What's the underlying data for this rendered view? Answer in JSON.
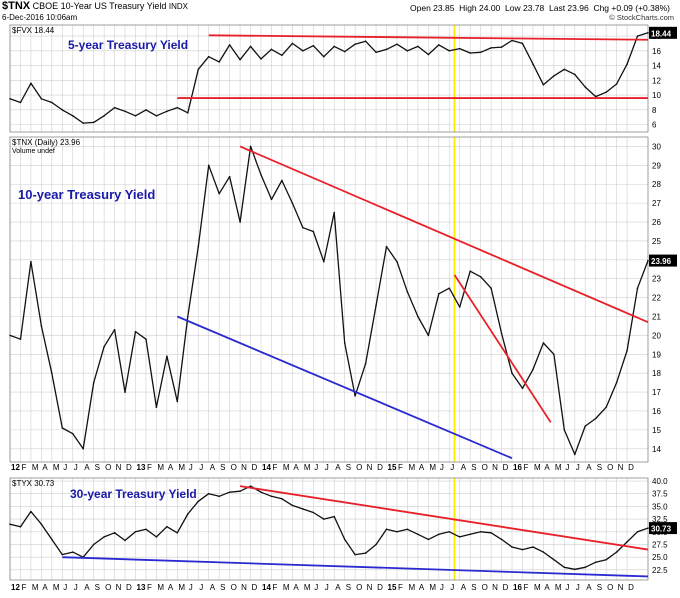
{
  "header": {
    "symbol": "$TNX",
    "name": "CBOE 10-Year US Treasury Yield",
    "exchange": "INDX",
    "date": "6-Dec-2016 10:06am",
    "open": "Open 23.85",
    "high": "High 24.00",
    "low": "Low 23.78",
    "last": "Last 23.96",
    "change": "Chg +0.09 (+0.38%)",
    "credit": "© StockCharts.com"
  },
  "chart_data": [
    {
      "type": "line",
      "legend": "$FVX 18.44",
      "annotation": "5-year Treasury Yield",
      "last_value_label": "18.44",
      "ylim": [
        5,
        19.5
      ],
      "y_ticks": [
        6,
        8,
        10,
        12,
        14,
        16,
        18
      ],
      "x": [
        0,
        1,
        2,
        3,
        4,
        5,
        6,
        7,
        8,
        9,
        10,
        11,
        12,
        13,
        14,
        15,
        16,
        17,
        18,
        19,
        20,
        21,
        22,
        23,
        24,
        25,
        26,
        27,
        28,
        29,
        30,
        31,
        32,
        33,
        34,
        35,
        36,
        37,
        38,
        39,
        40,
        41,
        42,
        43,
        44,
        45,
        46,
        47,
        48,
        49,
        50,
        51,
        52,
        53,
        54,
        55,
        56,
        57,
        58,
        59,
        60,
        61
      ],
      "values": [
        9.5,
        9.0,
        11.6,
        9.5,
        9.0,
        8.0,
        7.2,
        6.2,
        6.3,
        7.2,
        8.3,
        7.8,
        7.2,
        8.0,
        7.2,
        7.8,
        8.3,
        7.6,
        13.5,
        15.2,
        14.5,
        16.8,
        14.8,
        16.6,
        14.9,
        16.2,
        15.4,
        17.0,
        16.0,
        16.7,
        15.2,
        16.6,
        15.9,
        16.9,
        17.3,
        15.8,
        16.2,
        16.9,
        16.0,
        16.6,
        15.5,
        16.8,
        16.0,
        16.3,
        15.7,
        15.8,
        16.4,
        16.5,
        17.4,
        17.0,
        14.2,
        11.4,
        12.6,
        13.5,
        12.8,
        11.1,
        9.8,
        10.4,
        11.5,
        14.2,
        18.0,
        18.44
      ],
      "lines": [
        {
          "color": "#e8202a",
          "x": [
            19,
            61
          ],
          "y": [
            18.1,
            17.5
          ]
        },
        {
          "color": "#e8202a",
          "x": [
            16,
            61
          ],
          "y": [
            9.6,
            9.6
          ]
        }
      ]
    },
    {
      "type": "line",
      "legend": "$TNX (Daily) 23.96",
      "sublegend": "Volume undef",
      "annotation": "10-year Treasury Yield",
      "last_value_label": "23.96",
      "ylim": [
        13.3,
        30.5
      ],
      "y_ticks": [
        14,
        15,
        16,
        17,
        18,
        19,
        20,
        21,
        22,
        23,
        24,
        25,
        26,
        27,
        28,
        29,
        30
      ],
      "x": [
        0,
        1,
        2,
        3,
        4,
        5,
        6,
        7,
        8,
        9,
        10,
        11,
        12,
        13,
        14,
        15,
        16,
        17,
        18,
        19,
        20,
        21,
        22,
        23,
        24,
        25,
        26,
        27,
        28,
        29,
        30,
        31,
        32,
        33,
        34,
        35,
        36,
        37,
        38,
        39,
        40,
        41,
        42,
        43,
        44,
        45,
        46,
        47,
        48,
        49,
        50,
        51,
        52,
        53,
        54,
        55,
        56,
        57,
        58,
        59,
        60,
        61
      ],
      "values": [
        20.0,
        19.8,
        23.9,
        20.5,
        18.0,
        15.1,
        14.8,
        14.0,
        17.5,
        19.4,
        20.3,
        17.0,
        20.2,
        19.8,
        16.2,
        18.9,
        16.5,
        21.0,
        24.7,
        29.0,
        27.5,
        28.4,
        26.0,
        30.0,
        28.5,
        27.2,
        28.2,
        27.0,
        25.7,
        25.5,
        23.9,
        26.5,
        19.6,
        16.8,
        18.5,
        21.6,
        24.7,
        23.9,
        22.3,
        21.0,
        20.0,
        22.2,
        22.5,
        21.5,
        23.4,
        23.1,
        22.5,
        20.1,
        18.0,
        17.2,
        18.2,
        19.6,
        19.0,
        15.0,
        13.7,
        15.2,
        15.6,
        16.2,
        17.5,
        19.2,
        22.5,
        23.96
      ],
      "lines": [
        {
          "color": "#e8202a",
          "x": [
            22,
            61
          ],
          "y": [
            30.0,
            20.7
          ]
        },
        {
          "color": "#e8202a",
          "x": [
            42.5,
            51.7
          ],
          "y": [
            23.2,
            15.4
          ]
        },
        {
          "color": "#2a2ad0",
          "x": [
            16,
            48
          ],
          "y": [
            21.0,
            13.5
          ]
        }
      ]
    },
    {
      "type": "line",
      "legend": "$TYX 30.73",
      "annotation": "30-year Treasury Yield",
      "last_value_label": "30.73",
      "ylim": [
        20.5,
        40.6
      ],
      "y_ticks": [
        22.5,
        25.0,
        27.5,
        30.0,
        32.5,
        35.0,
        37.5,
        40.0
      ],
      "x": [
        0,
        1,
        2,
        3,
        4,
        5,
        6,
        7,
        8,
        9,
        10,
        11,
        12,
        13,
        14,
        15,
        16,
        17,
        18,
        19,
        20,
        21,
        22,
        23,
        24,
        25,
        26,
        27,
        28,
        29,
        30,
        31,
        32,
        33,
        34,
        35,
        36,
        37,
        38,
        39,
        40,
        41,
        42,
        43,
        44,
        45,
        46,
        47,
        48,
        49,
        50,
        51,
        52,
        53,
        54,
        55,
        56,
        57,
        58,
        59,
        60,
        61
      ],
      "values": [
        31.5,
        31.0,
        34.0,
        31.5,
        28.5,
        25.5,
        26.0,
        25.0,
        27.5,
        29.0,
        29.8,
        28.3,
        30.0,
        30.5,
        29.0,
        31.0,
        29.8,
        33.5,
        36.0,
        37.5,
        37.0,
        37.8,
        38.0,
        39.0,
        37.8,
        37.0,
        36.5,
        35.2,
        34.5,
        33.8,
        32.5,
        33.0,
        28.5,
        25.5,
        25.8,
        27.5,
        30.5,
        30.0,
        30.5,
        29.5,
        28.5,
        29.5,
        30.0,
        29.0,
        29.5,
        30.0,
        29.8,
        28.5,
        27.0,
        26.5,
        27.0,
        26.0,
        24.5,
        23.0,
        22.6,
        23.0,
        24.0,
        24.5,
        26.0,
        28.0,
        30.0,
        30.73
      ],
      "lines": [
        {
          "color": "#e8202a",
          "x": [
            22,
            61
          ],
          "y": [
            39.0,
            26.5
          ]
        },
        {
          "color": "#2a2ad0",
          "x": [
            5,
            61
          ],
          "y": [
            25.0,
            21.2
          ]
        }
      ]
    }
  ],
  "x_axis": {
    "month_ticks": [
      {
        "x": 0,
        "label": "12"
      },
      {
        "x": 1,
        "label": "F"
      },
      {
        "x": 2,
        "label": "M"
      },
      {
        "x": 3,
        "label": "A"
      },
      {
        "x": 4,
        "label": "M"
      },
      {
        "x": 5,
        "label": "J"
      },
      {
        "x": 6,
        "label": "J"
      },
      {
        "x": 7,
        "label": "A"
      },
      {
        "x": 8,
        "label": "S"
      },
      {
        "x": 9,
        "label": "O"
      },
      {
        "x": 10,
        "label": "N"
      },
      {
        "x": 11,
        "label": "D"
      },
      {
        "x": 12,
        "label": "13"
      },
      {
        "x": 13,
        "label": "F"
      },
      {
        "x": 14,
        "label": "M"
      },
      {
        "x": 15,
        "label": "A"
      },
      {
        "x": 16,
        "label": "M"
      },
      {
        "x": 17,
        "label": "J"
      },
      {
        "x": 18,
        "label": "J"
      },
      {
        "x": 19,
        "label": "A"
      },
      {
        "x": 20,
        "label": "S"
      },
      {
        "x": 21,
        "label": "O"
      },
      {
        "x": 22,
        "label": "N"
      },
      {
        "x": 23,
        "label": "D"
      },
      {
        "x": 24,
        "label": "14"
      },
      {
        "x": 25,
        "label": "F"
      },
      {
        "x": 26,
        "label": "M"
      },
      {
        "x": 27,
        "label": "A"
      },
      {
        "x": 28,
        "label": "M"
      },
      {
        "x": 29,
        "label": "J"
      },
      {
        "x": 30,
        "label": "J"
      },
      {
        "x": 31,
        "label": "A"
      },
      {
        "x": 32,
        "label": "S"
      },
      {
        "x": 33,
        "label": "O"
      },
      {
        "x": 34,
        "label": "N"
      },
      {
        "x": 35,
        "label": "D"
      },
      {
        "x": 36,
        "label": "15"
      },
      {
        "x": 37,
        "label": "F"
      },
      {
        "x": 38,
        "label": "M"
      },
      {
        "x": 39,
        "label": "A"
      },
      {
        "x": 40,
        "label": "M"
      },
      {
        "x": 41,
        "label": "J"
      },
      {
        "x": 42,
        "label": "J"
      },
      {
        "x": 43,
        "label": "A"
      },
      {
        "x": 44,
        "label": "S"
      },
      {
        "x": 45,
        "label": "O"
      },
      {
        "x": 46,
        "label": "N"
      },
      {
        "x": 47,
        "label": "D"
      },
      {
        "x": 48,
        "label": "16"
      },
      {
        "x": 49,
        "label": "F"
      },
      {
        "x": 50,
        "label": "M"
      },
      {
        "x": 51,
        "label": "A"
      },
      {
        "x": 52,
        "label": "M"
      },
      {
        "x": 53,
        "label": "J"
      },
      {
        "x": 54,
        "label": "J"
      },
      {
        "x": 55,
        "label": "A"
      },
      {
        "x": 56,
        "label": "S"
      },
      {
        "x": 57,
        "label": "O"
      },
      {
        "x": 58,
        "label": "N"
      },
      {
        "x": 59,
        "label": "D"
      }
    ],
    "highlight_x": 42.5,
    "highlight_color": "#ffee00"
  },
  "colors": {
    "price_line": "#111111",
    "grid": "#cfcfcf",
    "annotation_text": "#1a1aa8",
    "resistance_line": "#e8202a",
    "support_line": "#2a2ad0"
  }
}
